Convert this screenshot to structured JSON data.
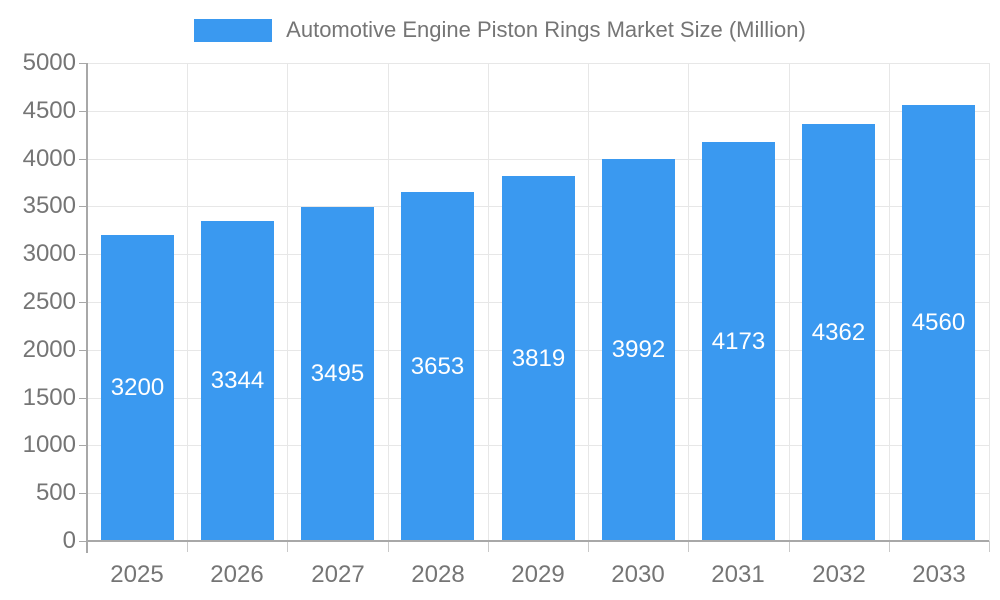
{
  "chart_data": {
    "type": "bar",
    "title": "Automotive Engine Piston Rings Market Size (Million)",
    "categories": [
      "2025",
      "2026",
      "2027",
      "2028",
      "2029",
      "2030",
      "2031",
      "2032",
      "2033"
    ],
    "values": [
      3200,
      3344,
      3495,
      3653,
      3819,
      3992,
      4173,
      4362,
      4560
    ],
    "xlabel": "",
    "ylabel": "",
    "ylim": [
      0,
      5000
    ],
    "ytick_step": 500,
    "grid": true,
    "legend_position": "top-center",
    "bar_label_position": "center",
    "colors": {
      "bar": "#3A99F0",
      "bar_label_text": "#FFFFFF",
      "grid_line": "#E7E7E7",
      "axis_line": "#A8A8A8",
      "tick_mark": "#C9C9C9",
      "tick_text": "#757575",
      "legend_text": "#757575",
      "background": "#FFFFFF"
    }
  }
}
